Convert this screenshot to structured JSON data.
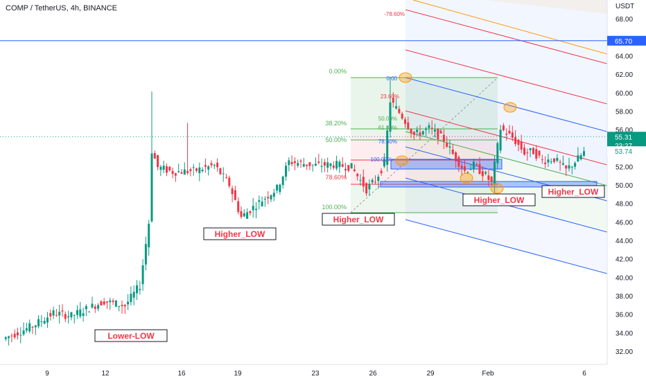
{
  "header": {
    "title": "COMP / TetherUS, 4h, BINANCE",
    "currency": "USDT"
  },
  "chart_data": {
    "type": "candlestick",
    "title": "COMP / TetherUS, 4h, BINANCE",
    "ylim": [
      31,
      70
    ],
    "y_ticks": [
      "32.00",
      "34.00",
      "36.00",
      "38.00",
      "40.00",
      "42.00",
      "44.00",
      "46.00",
      "48.00",
      "50.00",
      "52.00",
      "54.00",
      "56.00",
      "58.00",
      "60.00",
      "62.00",
      "64.00",
      "68.00"
    ],
    "x_ticks": [
      "9",
      "12",
      "16",
      "19",
      "23",
      "26",
      "29",
      "Feb",
      "6"
    ],
    "price_labels": [
      {
        "text": "65.70",
        "value": 65.7,
        "color": "#2962ff"
      },
      {
        "text": "55.31",
        "value": 55.31,
        "color": "#089981"
      },
      {
        "text": "23:27",
        "value": 54.35,
        "color": "#089981"
      },
      {
        "text": "53.74",
        "value": 53.74,
        "color": "#ffffff"
      }
    ],
    "horizontal_line": {
      "value": 65.7,
      "color": "#2962ff"
    },
    "last_price": 55.31,
    "fib_levels_left": [
      "0.00%",
      "38.20%",
      "50.00%",
      "78.60%",
      "100.00%"
    ],
    "fib_levels_channel": [
      "0.00",
      "23.60%",
      "50.00%",
      "61.80%",
      "78.60%",
      "100.00%",
      "-78.60%"
    ],
    "annotations": [
      "Lower-LOW",
      "Higher_LOW",
      "Higher_LOW",
      "Higher_LOW",
      "Higher_LOW"
    ],
    "colors": {
      "up": "#089981",
      "down": "#f23645",
      "channel": "#2962ff",
      "fib_green": "#4caf50",
      "fib_red": "#f23645"
    },
    "anchors": [
      [
        0,
        33.4
      ],
      [
        10,
        34.8
      ],
      [
        17,
        36.2
      ],
      [
        23,
        35.9
      ],
      [
        34,
        37.5
      ],
      [
        41,
        37.0
      ],
      [
        46,
        39.2
      ],
      [
        49,
        46.0
      ],
      [
        50,
        53.8
      ],
      [
        52,
        52.0
      ],
      [
        57,
        51.5
      ],
      [
        64,
        51.6
      ],
      [
        71,
        52.2
      ],
      [
        76,
        50.1
      ],
      [
        80,
        46.6
      ],
      [
        86,
        48.2
      ],
      [
        92,
        49.7
      ],
      [
        96,
        52.6
      ],
      [
        105,
        52.2
      ],
      [
        111,
        52.3
      ],
      [
        117,
        52.0
      ],
      [
        122,
        49.6
      ],
      [
        125,
        50.6
      ],
      [
        128,
        52.4
      ],
      [
        130,
        59.2
      ],
      [
        134,
        57.5
      ],
      [
        138,
        55.5
      ],
      [
        143,
        56.2
      ],
      [
        148,
        55.0
      ],
      [
        151,
        53.4
      ],
      [
        155,
        51.6
      ],
      [
        158,
        52.2
      ],
      [
        162,
        51.1
      ],
      [
        164,
        50.3
      ],
      [
        167,
        56.2
      ],
      [
        171,
        55.2
      ],
      [
        175,
        53.6
      ],
      [
        178,
        53.7
      ],
      [
        181,
        52.7
      ],
      [
        185,
        52.9
      ],
      [
        189,
        51.7
      ],
      [
        192,
        52.6
      ],
      [
        195,
        53.6
      ]
    ]
  }
}
